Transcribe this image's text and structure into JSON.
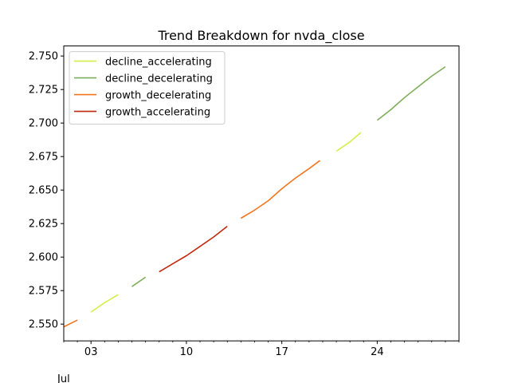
{
  "chart_data": {
    "type": "line",
    "title": "Trend Breakdown for nvda_close",
    "xlabel": "",
    "ylabel": "",
    "x_ticks": [
      {
        "label": "03",
        "day": 3
      },
      {
        "label": "10",
        "day": 10
      },
      {
        "label": "17",
        "day": 17
      },
      {
        "label": "24",
        "day": 24
      }
    ],
    "x_secondary_label": "Jul",
    "xlim": [
      1,
      30
    ],
    "ylim": [
      2.5375,
      2.7575
    ],
    "y_ticks": [
      "2.550",
      "2.575",
      "2.600",
      "2.625",
      "2.650",
      "2.675",
      "2.700",
      "2.725",
      "2.750"
    ],
    "legend_position": "top-left",
    "grid": false,
    "series": [
      {
        "name": "decline_accelerating",
        "color": "#d4ed4a",
        "segments": [
          [
            [
              3.0,
              2.559
            ],
            [
              4.0,
              2.566
            ],
            [
              5.0,
              2.572
            ]
          ],
          [
            [
              21.0,
              2.679
            ],
            [
              22.0,
              2.686
            ],
            [
              22.8,
              2.693
            ]
          ]
        ]
      },
      {
        "name": "decline_decelerating",
        "color": "#7fae5a",
        "segments": [
          [
            [
              6.0,
              2.578
            ],
            [
              7.0,
              2.585
            ]
          ],
          [
            [
              24.0,
              2.702
            ],
            [
              25.0,
              2.71
            ],
            [
              26.0,
              2.719
            ],
            [
              27.0,
              2.727
            ],
            [
              28.0,
              2.735
            ],
            [
              29.0,
              2.742
            ]
          ]
        ]
      },
      {
        "name": "growth_decelerating",
        "color": "#f3761e",
        "segments": [
          [
            [
              1.0,
              2.548
            ],
            [
              2.0,
              2.553
            ]
          ],
          [
            [
              14.0,
              2.629
            ],
            [
              15.0,
              2.635
            ],
            [
              16.0,
              2.642
            ],
            [
              17.0,
              2.651
            ],
            [
              18.0,
              2.659
            ],
            [
              19.0,
              2.666
            ],
            [
              19.8,
              2.672
            ]
          ]
        ]
      },
      {
        "name": "growth_accelerating",
        "color": "#c1290c",
        "segments": [
          [
            [
              8.0,
              2.589
            ],
            [
              9.0,
              2.595
            ],
            [
              10.0,
              2.601
            ],
            [
              11.0,
              2.608
            ],
            [
              12.0,
              2.615
            ],
            [
              13.0,
              2.623
            ]
          ]
        ]
      }
    ]
  }
}
